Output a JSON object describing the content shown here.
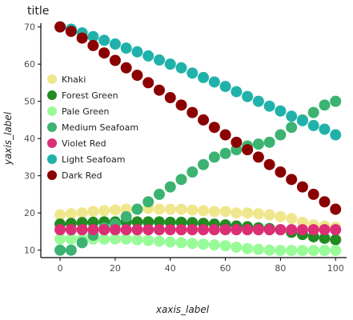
{
  "chart_data": {
    "type": "scatter",
    "title": "title",
    "xlabel": "xaxis_label",
    "ylabel": "yaxis_label",
    "xlim": [
      -7,
      104
    ],
    "ylim": [
      8,
      71
    ],
    "x_ticks": [
      0,
      20,
      40,
      60,
      80,
      100
    ],
    "y_ticks": [
      10,
      20,
      30,
      40,
      50,
      60,
      70
    ],
    "grid": false,
    "legend_position": "left",
    "series": [
      {
        "name": "Khaki",
        "color": "#f0e68c",
        "x": [
          0,
          4,
          8,
          12,
          16,
          20,
          24,
          28,
          32,
          36,
          40,
          44,
          48,
          52,
          56,
          60,
          64,
          68,
          72,
          76,
          80,
          84,
          88,
          92,
          96,
          100
        ],
        "y": [
          19.5,
          19.8,
          20.0,
          20.4,
          20.6,
          20.8,
          21.0,
          21.0,
          21.2,
          21.0,
          21.0,
          21.0,
          20.8,
          20.6,
          20.4,
          20.4,
          20.0,
          20.0,
          19.8,
          19.5,
          19.0,
          18.5,
          17.5,
          16.8,
          16.5,
          16.2
        ]
      },
      {
        "name": "Forest Green",
        "color": "#228b22",
        "x": [
          0,
          4,
          8,
          12,
          16,
          20,
          24,
          28,
          32,
          36,
          40,
          44,
          48,
          52,
          56,
          60,
          64,
          68,
          72,
          76,
          80,
          84,
          88,
          92,
          96,
          100
        ],
        "y": [
          17.0,
          17.2,
          17.4,
          17.5,
          17.6,
          17.6,
          17.6,
          17.6,
          17.6,
          17.6,
          17.5,
          17.5,
          17.4,
          17.2,
          17.0,
          16.8,
          16.5,
          16.3,
          16.0,
          15.8,
          15.5,
          14.8,
          14.2,
          13.6,
          13.2,
          12.8
        ]
      },
      {
        "name": "Pale Green",
        "color": "#98fb98",
        "x": [
          0,
          4,
          8,
          12,
          16,
          20,
          24,
          28,
          32,
          36,
          40,
          44,
          48,
          52,
          56,
          60,
          64,
          68,
          72,
          76,
          80,
          84,
          88,
          92,
          96,
          100
        ],
        "y": [
          13.0,
          13.0,
          13.0,
          13.0,
          13.0,
          13.0,
          13.0,
          12.8,
          12.6,
          12.4,
          12.2,
          12.0,
          11.8,
          11.6,
          11.4,
          11.2,
          10.8,
          10.4,
          10.2,
          10.0,
          9.9,
          9.9,
          9.9,
          9.9,
          9.9,
          9.9
        ]
      },
      {
        "name": "Medium Seafoam",
        "color": "#3cb371",
        "x": [
          0,
          4,
          8,
          12,
          16,
          20,
          24,
          28,
          32,
          36,
          40,
          44,
          48,
          52,
          56,
          60,
          64,
          68,
          72,
          76,
          80,
          84,
          88,
          92,
          96,
          100
        ],
        "y": [
          10.0,
          10.0,
          12.0,
          14.0,
          16.0,
          17.0,
          19.0,
          21.0,
          23.0,
          25.0,
          27.0,
          29.0,
          31.0,
          33.0,
          35.0,
          36.0,
          37.0,
          38.0,
          38.5,
          39.0,
          41.0,
          43.0,
          45.0,
          47.0,
          49.0,
          50.0
        ]
      },
      {
        "name": "Violet Red",
        "color": "#db2f75",
        "x": [
          0,
          4,
          8,
          12,
          16,
          20,
          24,
          28,
          32,
          36,
          40,
          44,
          48,
          52,
          56,
          60,
          64,
          68,
          72,
          76,
          80,
          84,
          88,
          92,
          96,
          100
        ],
        "y": [
          15.5,
          15.5,
          15.5,
          15.5,
          15.5,
          15.5,
          15.5,
          15.5,
          15.5,
          15.5,
          15.5,
          15.5,
          15.5,
          15.5,
          15.5,
          15.5,
          15.5,
          15.5,
          15.5,
          15.5,
          15.5,
          15.5,
          15.5,
          15.5,
          15.5,
          15.5
        ]
      },
      {
        "name": "Light Seafoam",
        "color": "#20b2aa",
        "x": [
          0,
          4,
          8,
          12,
          16,
          20,
          24,
          28,
          32,
          36,
          40,
          44,
          48,
          52,
          56,
          60,
          64,
          68,
          72,
          76,
          80,
          84,
          88,
          92,
          96,
          100
        ],
        "y": [
          70.0,
          69.4,
          68.4,
          67.4,
          66.4,
          65.4,
          64.3,
          63.3,
          62.2,
          61.1,
          60.0,
          59.0,
          57.6,
          56.4,
          55.2,
          54.0,
          52.6,
          51.3,
          50.0,
          48.7,
          47.4,
          46.0,
          44.8,
          43.5,
          42.5,
          41.0
        ]
      },
      {
        "name": "Dark Red",
        "color": "#8b0000",
        "x": [
          0,
          4,
          8,
          12,
          16,
          20,
          24,
          28,
          32,
          36,
          40,
          44,
          48,
          52,
          56,
          60,
          64,
          68,
          72,
          76,
          80,
          84,
          88,
          92,
          96,
          100
        ],
        "y": [
          70.0,
          68.8,
          67.0,
          65.0,
          63.0,
          61.0,
          59.0,
          57.0,
          55.0,
          53.0,
          51.0,
          49.0,
          47.0,
          45.0,
          43.0,
          41.0,
          39.0,
          37.0,
          35.0,
          33.0,
          31.0,
          29.0,
          27.0,
          25.0,
          23.0,
          21.0
        ]
      }
    ]
  }
}
